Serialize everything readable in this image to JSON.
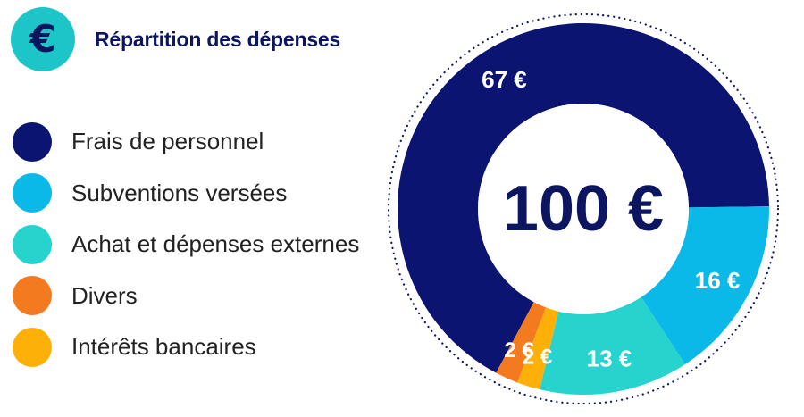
{
  "header": {
    "icon_glyph": "€",
    "icon_name": "euro-icon",
    "icon_bg": "#1DC4C8",
    "icon_color": "#0C1560",
    "title": "Répartition des dépenses",
    "title_color": "#0C1560"
  },
  "chart_data": {
    "type": "pie",
    "variant": "donut",
    "title": "Répartition des dépenses",
    "center_label": "100 €",
    "unit": "€",
    "total": 100,
    "legend_position": "left",
    "categories": [
      "Frais de personnel",
      "Subventions versées",
      "Achat et dépenses externes",
      "Divers",
      "Intérêts bancaires"
    ],
    "values": [
      67,
      16,
      13,
      2,
      2
    ],
    "data_labels": [
      "67 €",
      "16 €",
      "13 €",
      "2 €",
      "2 €"
    ],
    "colors": [
      "#0C1472",
      "#0BB9E8",
      "#27D3CD",
      "#F47A20",
      "#FDB108"
    ],
    "slice_order_clockwise_from_bottom_left": [
      "Frais de personnel",
      "Subventions versées",
      "Achat et dépenses externes",
      "Intérêts bancaires",
      "Divers"
    ]
  },
  "colors": {
    "center_text": "#0C1560",
    "dotted_ring": "#0C1560"
  }
}
